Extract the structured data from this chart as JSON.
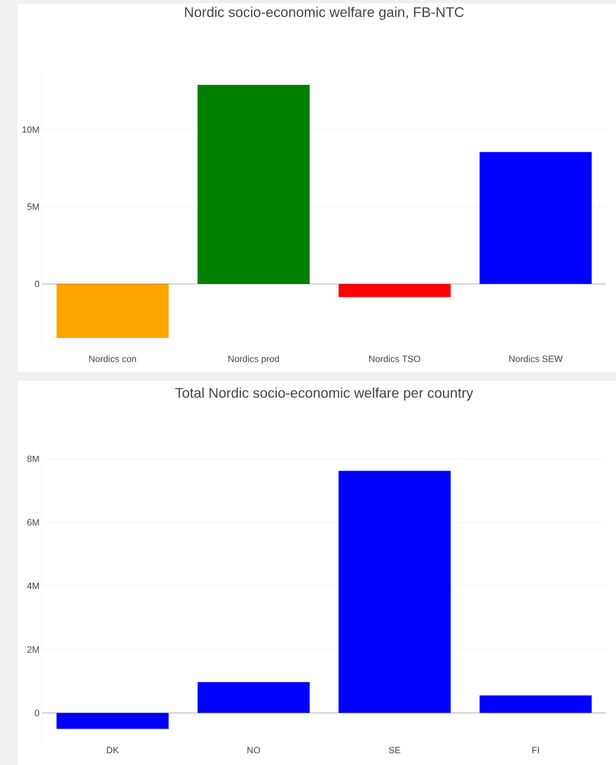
{
  "chart_data": [
    {
      "type": "bar",
      "title": "Nordic socio-economic welfare gain, FB-NTC",
      "categories": [
        "Nordics con",
        "Nordics prod",
        "Nordics TSO",
        "Nordics SEW"
      ],
      "values": [
        -3500000,
        12900000,
        -850000,
        8550000
      ],
      "colors": [
        "#ffa500",
        "#008000",
        "#ff0000",
        "#0000ff"
      ],
      "ylim": [
        -4320000,
        13720000
      ],
      "yticks": [
        {
          "value": 0,
          "label": "0"
        },
        {
          "value": 5000000,
          "label": "5M"
        },
        {
          "value": 10000000,
          "label": "10M"
        }
      ],
      "grid": "y"
    },
    {
      "type": "bar",
      "title": "Total Nordic socio-economic welfare per country",
      "categories": [
        "DK",
        "NO",
        "SE",
        "FI"
      ],
      "values": [
        -500000,
        970000,
        7620000,
        550000
      ],
      "colors": [
        "#0000ff",
        "#0000ff",
        "#0000ff",
        "#0000ff"
      ],
      "ylim": [
        -910000,
        8030000
      ],
      "yticks": [
        {
          "value": 0,
          "label": "0"
        },
        {
          "value": 2000000,
          "label": "2M"
        },
        {
          "value": 4000000,
          "label": "4M"
        },
        {
          "value": 6000000,
          "label": "6M"
        },
        {
          "value": 8000000,
          "label": "8M"
        }
      ],
      "grid": "y"
    }
  ]
}
